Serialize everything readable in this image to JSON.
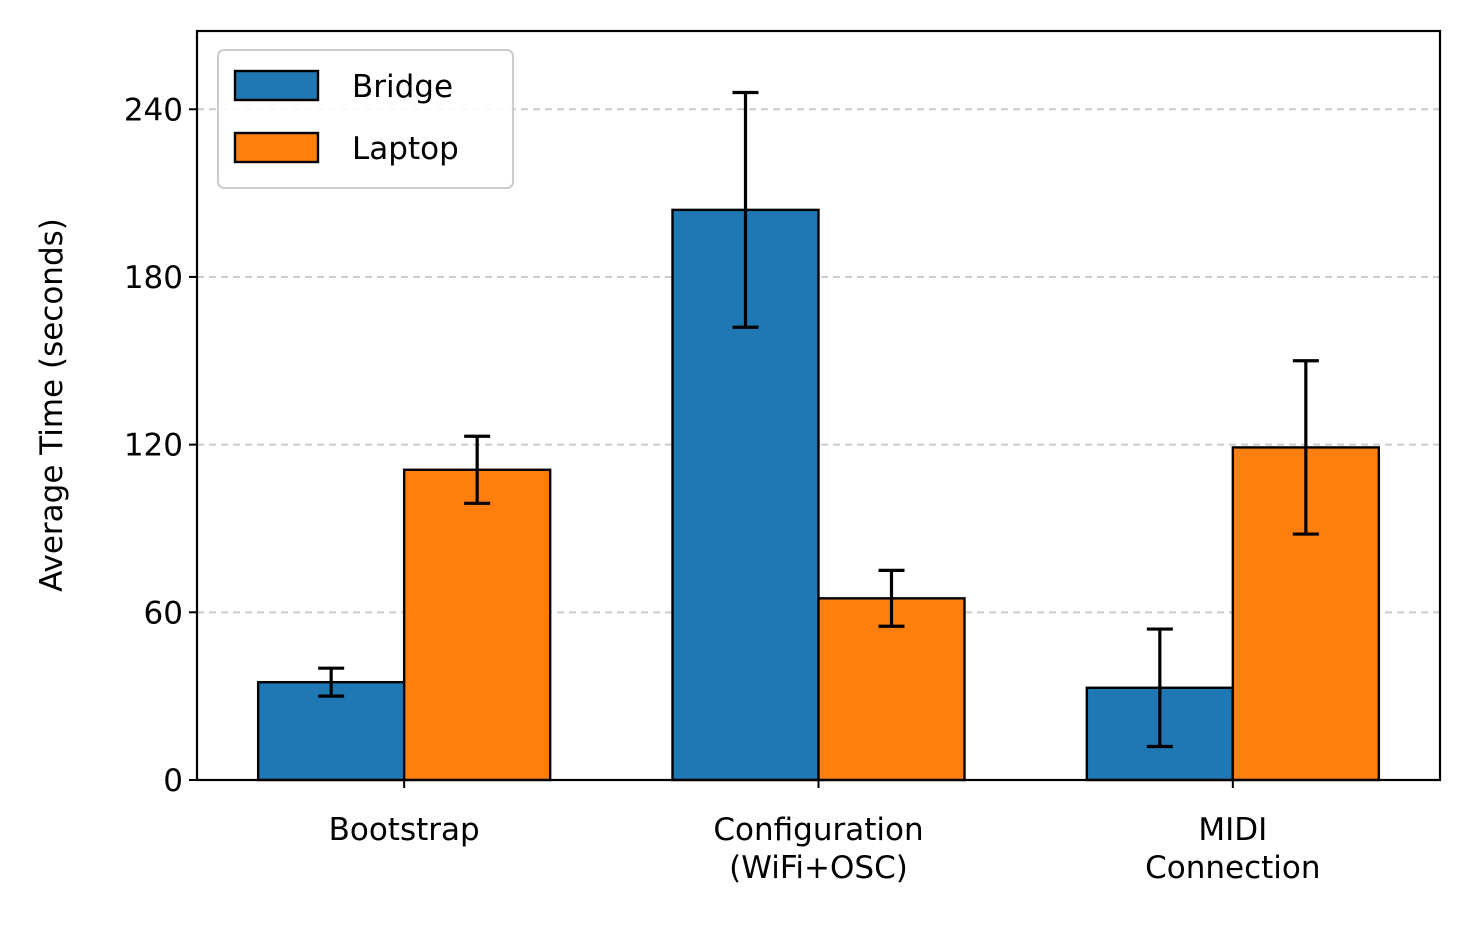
{
  "chart_data": {
    "type": "bar",
    "title": "",
    "xlabel": "",
    "ylabel": "Average Time (seconds)",
    "categories": [
      [
        "Bootstrap"
      ],
      [
        "Configuration",
        "(WiFi+OSC)"
      ],
      [
        "MIDI",
        "Connection"
      ]
    ],
    "series": [
      {
        "name": "Bridge",
        "color": "#1f77b4",
        "values": [
          35,
          204,
          33
        ],
        "errors": [
          5,
          42,
          21
        ]
      },
      {
        "name": "Laptop",
        "color": "#ff7f0e",
        "values": [
          111,
          65,
          119
        ],
        "errors": [
          12,
          10,
          31
        ]
      }
    ],
    "ylim": [
      0,
      268
    ],
    "yticks": [
      0,
      60,
      120,
      180,
      240
    ],
    "grid": "y-dashed",
    "legend_position": "top-left"
  }
}
